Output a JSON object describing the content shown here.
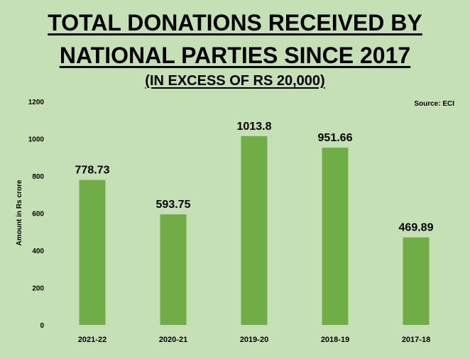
{
  "chart_data": {
    "type": "bar",
    "title_line1": "TOTAL DONATIONS RECEIVED BY",
    "title_line2": "NATIONAL PARTIES SINCE 2017",
    "subtitle": "(IN EXCESS OF RS 20,000)",
    "source": "Source: ECI",
    "ylabel": "Amount in Rs crore",
    "xlabel": "",
    "categories": [
      "2021-22",
      "2020-21",
      "2019-20",
      "2018-19",
      "2017-18"
    ],
    "values": [
      778.73,
      593.75,
      1013.8,
      951.66,
      469.89
    ],
    "data_labels": [
      "778.73",
      "593.75",
      "1013.8",
      "951.66",
      "469.89"
    ],
    "ylim": [
      0,
      1200
    ],
    "yticks": [
      0,
      200,
      400,
      600,
      800,
      1000,
      1200
    ],
    "bar_color": "#70ad47",
    "background_color": "#c5e0b4",
    "grid": false,
    "legend": "none"
  }
}
